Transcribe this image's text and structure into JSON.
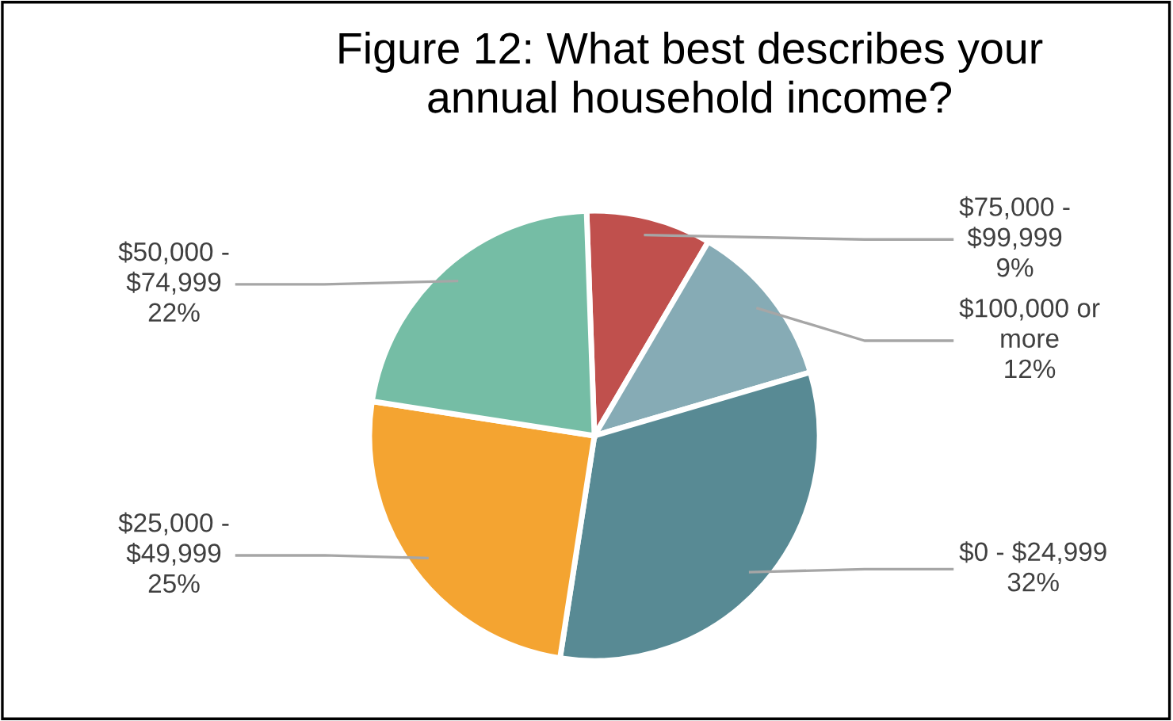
{
  "chart_data": {
    "type": "pie",
    "title": "Figure 12: What best describes your\nannual household income?",
    "categories": [
      "$75,000 -\n$99,999",
      "$100,000 or\nmore",
      "$0 - $24,999",
      "$25,000 -\n$49,999",
      "$50,000 -\n$74,999"
    ],
    "values": [
      9,
      12,
      32,
      25,
      22
    ],
    "colors": [
      "#c0504d",
      "#86abb5",
      "#588a94",
      "#f4a431",
      "#75bda5"
    ],
    "value_labels": [
      "9%",
      "12%",
      "32%",
      "25%",
      "22%"
    ]
  }
}
